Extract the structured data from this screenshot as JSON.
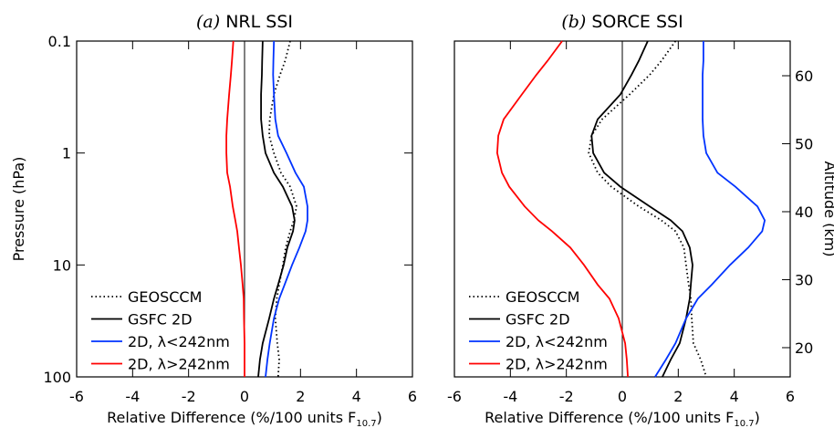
{
  "chart_data": [
    {
      "type": "line",
      "panel_label": "(a)",
      "title": "NRL SSI",
      "xlabel": [
        "Relative Difference (%/100 units F",
        "10.7",
        ")"
      ],
      "ylabel": "Pressure (hPa)",
      "xlim": [
        -6,
        6
      ],
      "xticks": [
        -6,
        -4,
        -2,
        0,
        2,
        4,
        6
      ],
      "ylim": [
        0.1,
        100
      ],
      "ylog": true,
      "yinverted": true,
      "yticks": [
        0.1,
        1,
        10,
        100
      ],
      "vline": 0,
      "legend": "lower left",
      "y": [
        0.1,
        0.15,
        0.2,
        0.3,
        0.5,
        0.7,
        1,
        1.5,
        2,
        3,
        4,
        5,
        7,
        10,
        15,
        20,
        30,
        50,
        70,
        100
      ],
      "series": [
        {
          "name": "GEOSCCM",
          "color": "#000000",
          "linestyle": "dotted",
          "values": [
            1.63,
            1.45,
            1.27,
            1.05,
            0.9,
            0.88,
            1.05,
            1.3,
            1.63,
            1.86,
            1.76,
            1.63,
            1.47,
            1.37,
            1.24,
            1.15,
            1.1,
            1.17,
            1.24,
            1.2
          ]
        },
        {
          "name": "GSFC 2D",
          "color": "#000000",
          "linestyle": "solid",
          "values": [
            0.65,
            0.63,
            0.62,
            0.59,
            0.59,
            0.65,
            0.75,
            1.05,
            1.37,
            1.7,
            1.79,
            1.73,
            1.53,
            1.4,
            1.2,
            1.05,
            0.88,
            0.65,
            0.55,
            0.49
          ]
        },
        {
          "name": "2D, λ<242nm",
          "color": "#0033ff",
          "linestyle": "solid",
          "values": [
            1.05,
            1.03,
            1.02,
            1.05,
            1.1,
            1.2,
            1.5,
            1.82,
            2.12,
            2.25,
            2.25,
            2.18,
            1.96,
            1.7,
            1.43,
            1.24,
            1.05,
            0.9,
            0.82,
            0.75
          ]
        },
        {
          "name": "2D, λ>242nm",
          "color": "#ff0000",
          "linestyle": "solid",
          "values": [
            -0.4,
            -0.45,
            -0.49,
            -0.55,
            -0.62,
            -0.65,
            -0.65,
            -0.62,
            -0.52,
            -0.42,
            -0.33,
            -0.26,
            -0.2,
            -0.13,
            -0.07,
            -0.03,
            -0.02,
            0,
            0,
            0
          ]
        }
      ]
    },
    {
      "type": "line",
      "panel_label": "(b)",
      "title": "SORCE SSI",
      "xlabel": [
        "Relative Difference (%/100 units F",
        "10.7",
        ")"
      ],
      "y2label": "Altitude (km)",
      "xlim": [
        -6,
        6
      ],
      "xticks": [
        -6,
        -4,
        -2,
        0,
        2,
        4,
        6
      ],
      "ylim": [
        0.1,
        100
      ],
      "ylog": true,
      "yinverted": true,
      "y2lim": [
        15.7,
        65.1
      ],
      "y2ticks": [
        20,
        30,
        40,
        50,
        60
      ],
      "vline": 0,
      "legend": "lower left",
      "y": [
        0.1,
        0.15,
        0.2,
        0.3,
        0.5,
        0.7,
        1,
        1.5,
        2,
        3,
        4,
        5,
        7,
        10,
        15,
        20,
        30,
        50,
        70,
        100
      ],
      "series": [
        {
          "name": "GEOSCCM",
          "color": "#000000",
          "linestyle": "dotted",
          "values": [
            1.9,
            1.4,
            0.98,
            0.26,
            -0.72,
            -1.1,
            -1.2,
            -0.88,
            -0.39,
            0.59,
            1.4,
            1.9,
            2.2,
            2.28,
            2.37,
            2.45,
            2.48,
            2.54,
            2.8,
            3.0
          ]
        },
        {
          "name": "GSFC 2D",
          "color": "#000000",
          "linestyle": "solid",
          "values": [
            0.91,
            0.59,
            0.33,
            -0.07,
            -0.88,
            -1.1,
            -1.04,
            -0.65,
            -0.07,
            0.98,
            1.73,
            2.15,
            2.41,
            2.51,
            2.45,
            2.41,
            2.28,
            2.05,
            1.73,
            1.43
          ]
        },
        {
          "name": "2D, λ<242nm",
          "color": "#0033ff",
          "linestyle": "solid",
          "values": [
            2.9,
            2.9,
            2.87,
            2.87,
            2.87,
            2.9,
            3.0,
            3.4,
            4.04,
            4.83,
            5.09,
            5.0,
            4.5,
            3.85,
            3.2,
            2.7,
            2.28,
            1.9,
            1.56,
            1.17
          ]
        },
        {
          "name": "2D, λ>242nm",
          "color": "#ff0000",
          "linestyle": "solid",
          "values": [
            -2.15,
            -2.67,
            -3.07,
            -3.59,
            -4.24,
            -4.43,
            -4.47,
            -4.3,
            -4.04,
            -3.49,
            -3.0,
            -2.51,
            -1.86,
            -1.37,
            -0.88,
            -0.46,
            -0.13,
            0.1,
            0.16,
            0.2
          ]
        }
      ]
    }
  ]
}
